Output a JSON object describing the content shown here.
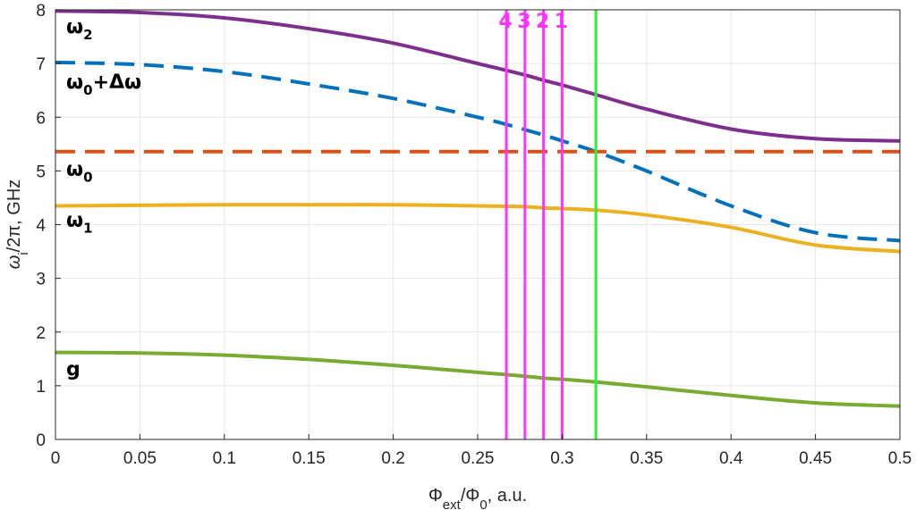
{
  "chart_data": {
    "type": "line",
    "xlabel": {
      "base": "Φ",
      "sub1": "ext",
      "mid": "/Φ",
      "sub2": "0",
      "tail": ", a.u."
    },
    "ylabel": {
      "base": "ω",
      "sub": "i",
      "tail": "/2π, GHz"
    },
    "xlim": [
      0,
      0.5
    ],
    "ylim": [
      0,
      8
    ],
    "x_ticks": [
      "0",
      "0.05",
      "0.1",
      "0.15",
      "0.2",
      "0.25",
      "0.3",
      "0.35",
      "0.4",
      "0.45",
      "0.5"
    ],
    "y_ticks": [
      "0",
      "1",
      "2",
      "3",
      "4",
      "5",
      "6",
      "7",
      "8"
    ],
    "grid": true,
    "series": [
      {
        "label": "ω2",
        "label_base": "ω",
        "label_sub": "2",
        "label_tail": "",
        "color": "#7E2F8E",
        "style": "solid",
        "label_y": 7.7,
        "x": [
          0,
          0.05,
          0.1,
          0.15,
          0.2,
          0.25,
          0.27,
          0.28,
          0.29,
          0.3,
          0.32,
          0.35,
          0.4,
          0.45,
          0.5
        ],
        "y": [
          7.98,
          7.95,
          7.85,
          7.65,
          7.38,
          7.0,
          6.85,
          6.77,
          6.68,
          6.6,
          6.42,
          6.15,
          5.78,
          5.6,
          5.56
        ]
      },
      {
        "label": "ω0+Δω",
        "label_base": "ω",
        "label_sub": "0",
        "label_tail": "+Δω",
        "color": "#0072BD",
        "style": "dashed",
        "label_y": 6.67,
        "x": [
          0,
          0.05,
          0.1,
          0.15,
          0.2,
          0.25,
          0.27,
          0.28,
          0.29,
          0.3,
          0.32,
          0.35,
          0.4,
          0.45,
          0.5
        ],
        "y": [
          7.02,
          6.98,
          6.85,
          6.62,
          6.35,
          6.0,
          5.84,
          5.75,
          5.66,
          5.56,
          5.36,
          5.0,
          4.35,
          3.85,
          3.7
        ]
      },
      {
        "label": "ω0",
        "label_base": "ω",
        "label_sub": "0",
        "label_tail": "",
        "color": "#D95319",
        "style": "dashed",
        "label_y": 5.05,
        "x": [
          0,
          0.5
        ],
        "y": [
          5.36,
          5.36
        ]
      },
      {
        "label": "ω1",
        "label_base": "ω",
        "label_sub": "1",
        "label_tail": "",
        "color": "#EDB120",
        "style": "solid",
        "label_y": 4.1,
        "x": [
          0,
          0.05,
          0.1,
          0.15,
          0.2,
          0.25,
          0.27,
          0.28,
          0.29,
          0.3,
          0.32,
          0.35,
          0.4,
          0.45,
          0.5
        ],
        "y": [
          4.35,
          4.36,
          4.37,
          4.37,
          4.37,
          4.35,
          4.34,
          4.33,
          4.31,
          4.3,
          4.27,
          4.18,
          3.95,
          3.62,
          3.5
        ]
      },
      {
        "label": "g",
        "label_base": "g",
        "label_sub": "",
        "label_tail": "",
        "color": "#77AC30",
        "style": "solid",
        "label_y": 1.32,
        "x": [
          0,
          0.05,
          0.1,
          0.15,
          0.2,
          0.25,
          0.27,
          0.28,
          0.29,
          0.3,
          0.32,
          0.35,
          0.4,
          0.45,
          0.5
        ],
        "y": [
          1.62,
          1.61,
          1.57,
          1.49,
          1.38,
          1.25,
          1.2,
          1.17,
          1.14,
          1.12,
          1.07,
          0.98,
          0.82,
          0.68,
          0.62
        ]
      }
    ],
    "markers": [
      {
        "label": "4",
        "x": 0.267,
        "color": "#FF33FF"
      },
      {
        "label": "3",
        "x": 0.278,
        "color": "#FF33FF"
      },
      {
        "label": "2",
        "x": 0.289,
        "color": "#FF33FF"
      },
      {
        "label": "1",
        "x": 0.3,
        "color": "#FF33FF"
      },
      {
        "label": "",
        "x": 0.32,
        "color": "#33EE33"
      }
    ]
  }
}
